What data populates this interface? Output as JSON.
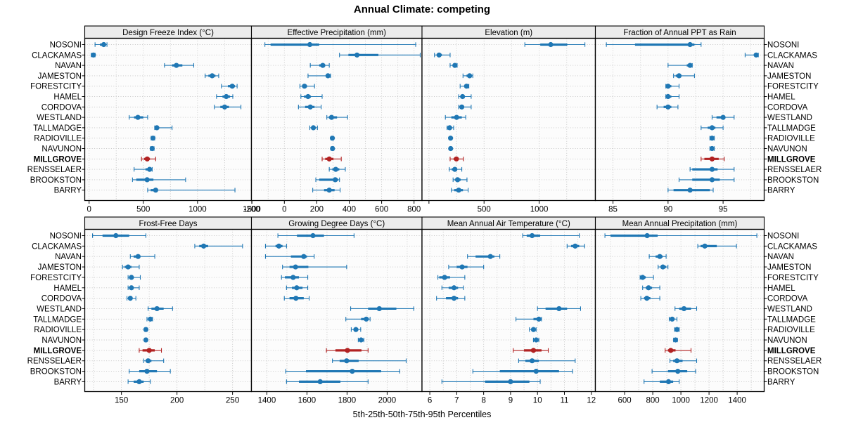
{
  "title": "Annual Climate: competing",
  "footer": "5th-25th-50th-75th-95th Percentiles",
  "colors": {
    "series": "#1f77b4",
    "highlight": "#b22222",
    "strip_bg": "#ececec",
    "panel_bg": "#fcfcfc",
    "grid": "#c4c4c4",
    "border": "#000000"
  },
  "highlight_row": "MILLGROVE",
  "chart_data": {
    "type": "dotplot-percentiles",
    "percentile_labels": [
      "5th",
      "25th",
      "50th",
      "75th",
      "95th"
    ],
    "rows": [
      "NOSONI",
      "CLACKAMAS",
      "NAVAN",
      "JAMESTON",
      "FORESTCITY",
      "HAMEL",
      "CORDOVA",
      "WESTLAND",
      "TALLMADGE",
      "RADIOVILLE",
      "NAVUNON",
      "MILLGROVE",
      "RENSSELAER",
      "BROOKSTON",
      "BARRY"
    ],
    "grid": "dotted major+minor vertical, dotted row lines",
    "legend_position": "none",
    "panels": [
      {
        "title": "Design Freeze Index (°C)",
        "band": 0,
        "col": 0,
        "xlim": [
          -40,
          1497
        ],
        "ticks": [
          0,
          500,
          1000,
          1500
        ],
        "minor_step": 250,
        "stub_ticks": [],
        "values": [
          [
            55,
            100,
            135,
            155,
            165
          ],
          [
            20,
            30,
            40,
            46,
            55
          ],
          [
            695,
            765,
            805,
            860,
            965
          ],
          [
            1070,
            1100,
            1135,
            1165,
            1195
          ],
          [
            1220,
            1280,
            1320,
            1345,
            1365
          ],
          [
            1175,
            1230,
            1265,
            1300,
            1325
          ],
          [
            1155,
            1210,
            1250,
            1290,
            1400
          ],
          [
            370,
            415,
            450,
            500,
            540
          ],
          [
            605,
            612,
            625,
            645,
            765
          ],
          [
            572,
            581,
            589,
            597,
            605
          ],
          [
            565,
            574,
            582,
            590,
            599
          ],
          [
            483,
            508,
            536,
            561,
            614
          ],
          [
            415,
            520,
            558,
            570,
            582
          ],
          [
            400,
            435,
            535,
            593,
            890
          ],
          [
            540,
            568,
            614,
            635,
            1345
          ]
        ]
      },
      {
        "title": "Effective Precipitation (mm)",
        "band": 0,
        "col": 1,
        "xlim": [
          -203,
          849
        ],
        "ticks": [
          -200,
          0,
          200,
          400,
          600,
          800
        ],
        "minor_step": 100,
        "stub_ticks": [],
        "values": [
          [
            -120,
            -85,
            157,
            215,
            810
          ],
          [
            340,
            395,
            448,
            580,
            838
          ],
          [
            160,
            215,
            237,
            252,
            277
          ],
          [
            146,
            256,
            269,
            277,
            285
          ],
          [
            96,
            111,
            124,
            140,
            186
          ],
          [
            102,
            121,
            146,
            164,
            233
          ],
          [
            87,
            128,
            160,
            186,
            227
          ],
          [
            262,
            274,
            291,
            325,
            390
          ],
          [
            157,
            167,
            179,
            191,
            204
          ],
          [
            288,
            292,
            296,
            300,
            304
          ],
          [
            289,
            293,
            297,
            301,
            305
          ],
          [
            233,
            252,
            277,
            303,
            351
          ],
          [
            277,
            296,
            317,
            339,
            376
          ],
          [
            194,
            215,
            314,
            332,
            340
          ],
          [
            175,
            245,
            277,
            310,
            344
          ]
        ]
      },
      {
        "title": "Elevation (m)",
        "band": 0,
        "col": 2,
        "xlim": [
          -63,
          1510
        ],
        "ticks": [
          500,
          1000
        ],
        "minor_step": 250,
        "stub_ticks": [
          0
        ],
        "values": [
          [
            870,
            1010,
            1105,
            1255,
            1415
          ],
          [
            50,
            70,
            92,
            117,
            192
          ],
          [
            192,
            219,
            235,
            245,
            256
          ],
          [
            309,
            341,
            369,
            383,
            398
          ],
          [
            283,
            320,
            341,
            356,
            362
          ],
          [
            270,
            288,
            305,
            320,
            383
          ],
          [
            270,
            283,
            298,
            313,
            383
          ],
          [
            149,
            203,
            251,
            298,
            334
          ],
          [
            165,
            178,
            188,
            202,
            224
          ],
          [
            188,
            192,
            196,
            200,
            204
          ],
          [
            189,
            193,
            197,
            201,
            205
          ],
          [
            192,
            224,
            249,
            270,
            313
          ],
          [
            185,
            207,
            235,
            256,
            298
          ],
          [
            219,
            235,
            260,
            288,
            345
          ],
          [
            203,
            229,
            270,
            309,
            356
          ]
        ]
      },
      {
        "title": "Fraction of Annual PPT as Rain",
        "band": 0,
        "col": 3,
        "xlim": [
          83.4,
          98.73
        ],
        "ticks": [
          85,
          90,
          95
        ],
        "minor_step": 2.5,
        "stub_ticks": [],
        "values": [
          [
            84.4,
            87,
            92,
            92.4,
            93
          ],
          [
            97,
            97.8,
            98,
            98.1,
            98.2
          ],
          [
            90,
            91.7,
            92,
            92.1,
            92.2
          ],
          [
            90.5,
            90.7,
            91,
            91.2,
            92.4
          ],
          [
            89.8,
            89.9,
            90,
            90.3,
            91
          ],
          [
            89.8,
            89.9,
            90,
            90.3,
            91
          ],
          [
            89,
            89.6,
            90,
            90.3,
            90.9
          ],
          [
            94,
            94.4,
            95,
            95.2,
            96
          ],
          [
            93,
            93.6,
            94,
            94.3,
            95
          ],
          [
            93.8,
            93.9,
            94,
            94.1,
            94.2
          ],
          [
            93.8,
            93.9,
            94,
            94.1,
            94.2
          ],
          [
            93,
            93.3,
            94,
            94.6,
            95.1
          ],
          [
            92,
            92.2,
            94,
            94.5,
            96
          ],
          [
            91,
            92.2,
            94,
            94.7,
            96
          ],
          [
            90,
            90.5,
            92,
            93.8,
            94.1
          ]
        ]
      },
      {
        "title": "Frost-Free Days",
        "band": 1,
        "col": 0,
        "xlim": [
          117,
          267
        ],
        "ticks": [
          150,
          200,
          250
        ],
        "minor_step": 25,
        "stub_ticks": [],
        "values": [
          [
            124,
            133,
            145,
            157,
            172
          ],
          [
            216,
            220,
            224,
            228,
            259
          ],
          [
            158,
            161,
            165,
            167,
            180
          ],
          [
            151,
            153,
            156,
            159,
            166
          ],
          [
            156,
            157,
            159,
            161,
            167
          ],
          [
            156,
            158,
            159,
            161,
            166
          ],
          [
            155,
            157,
            158,
            160,
            163
          ],
          [
            174,
            177,
            182,
            188,
            196
          ],
          [
            173,
            175,
            176,
            177,
            178
          ],
          [
            171,
            171.5,
            172,
            172.5,
            173
          ],
          [
            171,
            171.5,
            172,
            172.5,
            173
          ],
          [
            166,
            169,
            175,
            180,
            186
          ],
          [
            170,
            172,
            174,
            177,
            188
          ],
          [
            157,
            166,
            173,
            182,
            194
          ],
          [
            156,
            161,
            166,
            170,
            176
          ]
        ]
      },
      {
        "title": "Growing Degree Days (°C)",
        "band": 1,
        "col": 1,
        "xlim": [
          1323,
          2174
        ],
        "ticks": [
          1400,
          1600,
          1800,
          2000
        ],
        "minor_step": 100,
        "stub_ticks": [],
        "values": [
          [
            1455,
            1550,
            1630,
            1685,
            1835
          ],
          [
            1393,
            1443,
            1460,
            1478,
            1498
          ],
          [
            1393,
            1520,
            1584,
            1600,
            1636
          ],
          [
            1478,
            1513,
            1543,
            1607,
            1798
          ],
          [
            1473,
            1490,
            1531,
            1560,
            1604
          ],
          [
            1498,
            1525,
            1549,
            1578,
            1604
          ],
          [
            1487,
            1513,
            1545,
            1584,
            1611
          ],
          [
            1818,
            1905,
            1961,
            2046,
            2133
          ],
          [
            1794,
            1870,
            1896,
            1908,
            1915
          ],
          [
            1821,
            1833,
            1844,
            1856,
            1868
          ],
          [
            1856,
            1863,
            1870,
            1877,
            1884
          ],
          [
            1697,
            1742,
            1802,
            1872,
            1905
          ],
          [
            1727,
            1763,
            1798,
            1858,
            2095
          ],
          [
            1494,
            1595,
            1826,
            1970,
            2063
          ],
          [
            1498,
            1560,
            1666,
            1767,
            1905
          ]
        ]
      },
      {
        "title": "Mean Annual Air Temperature (°C)",
        "band": 1,
        "col": 2,
        "xlim": [
          5.71,
          12.15
        ],
        "ticks": [
          6,
          7,
          8,
          9,
          10,
          11,
          12
        ],
        "minor_step": 0.5,
        "stub_ticks": [],
        "values": [
          [
            9.45,
            9.6,
            9.8,
            10.1,
            11.55
          ],
          [
            11.1,
            11.25,
            11.4,
            11.55,
            11.75
          ],
          [
            7.4,
            7.7,
            8.25,
            8.4,
            8.6
          ],
          [
            6.7,
            7,
            7.2,
            7.4,
            8
          ],
          [
            6.3,
            6.35,
            6.55,
            6.75,
            7.3
          ],
          [
            6.45,
            6.7,
            6.9,
            7.05,
            7.25
          ],
          [
            6.25,
            6.6,
            6.9,
            7.05,
            7.3
          ],
          [
            10,
            10.3,
            10.8,
            11.1,
            11.6
          ],
          [
            9.2,
            9.85,
            10.05,
            10.1,
            10.15
          ],
          [
            9.7,
            9.78,
            9.85,
            9.9,
            9.95
          ],
          [
            9.85,
            9.9,
            9.95,
            10,
            10.05
          ],
          [
            9.1,
            9.5,
            9.85,
            10.15,
            10.4
          ],
          [
            9.3,
            9.55,
            9.8,
            10.05,
            11.4
          ],
          [
            7.6,
            8.6,
            9.95,
            10.8,
            11.3
          ],
          [
            6.45,
            8.05,
            9,
            9.7,
            10.1
          ]
        ]
      },
      {
        "title": "Mean Annual Precipitation (mm)",
        "band": 1,
        "col": 3,
        "xlim": [
          392,
          1592
        ],
        "ticks": [
          600,
          800,
          1000,
          1200,
          1400
        ],
        "minor_step": 100,
        "stub_ticks": [],
        "values": [
          [
            460,
            500,
            760,
            835,
            1540
          ],
          [
            1120,
            1140,
            1170,
            1255,
            1395
          ],
          [
            775,
            820,
            850,
            870,
            895
          ],
          [
            838,
            855,
            872,
            895,
            908
          ],
          [
            710,
            717,
            728,
            750,
            805
          ],
          [
            728,
            750,
            770,
            795,
            850
          ],
          [
            715,
            738,
            758,
            783,
            850
          ],
          [
            958,
            988,
            1022,
            1072,
            1112
          ],
          [
            917,
            925,
            938,
            955,
            972
          ],
          [
            955,
            962,
            972,
            982,
            988
          ],
          [
            948,
            955,
            962,
            968,
            975
          ],
          [
            888,
            908,
            928,
            962,
            1072
          ],
          [
            922,
            945,
            972,
            1012,
            1112
          ],
          [
            795,
            908,
            978,
            1045,
            1105
          ],
          [
            738,
            850,
            912,
            945,
            988
          ]
        ]
      }
    ]
  }
}
